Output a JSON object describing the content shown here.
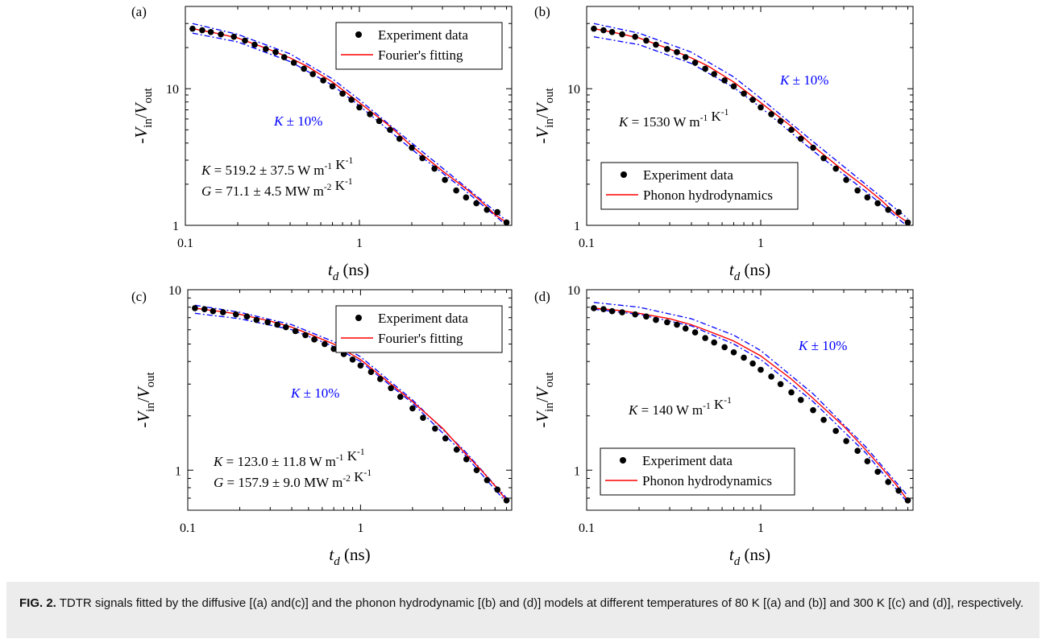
{
  "caption": {
    "label": "FIG. 2.",
    "text": "TDTR signals fitted by the diffusive [(a) and(c)] and the phonon hydrodynamic [(b) and (d)] models at different temperatures of 80 K [(a) and (b)] and 300 K [(c) and (d)], respectively."
  },
  "chart_data": [
    {
      "panel": "(a)",
      "type": "line",
      "log_x": true,
      "log_y": true,
      "xlabel_var": "t",
      "xlabel_sub": "d",
      "xlabel_unit": " (ns)",
      "ylabel": "-Vin/Vout",
      "xlim": [
        0.1,
        7.5
      ],
      "ylim": [
        1,
        40
      ],
      "x_ticks": [
        "0.1",
        "1"
      ],
      "y_ticks": [
        "1",
        "10"
      ],
      "legend": [
        "Experiment data",
        "Fourier's fitting"
      ],
      "legend_position": "top-right",
      "band_label": "K ± 10%",
      "annotations": [
        "K = 519.2 ± 37.5 W m-1 K-1",
        "G = 71.1 ± 4.5 MW m-2 K-1"
      ],
      "fit_color": "#ff0000",
      "band_color": "#0000ff",
      "experiment": {
        "x": [
          0.11,
          0.125,
          0.14,
          0.16,
          0.19,
          0.22,
          0.25,
          0.29,
          0.33,
          0.37,
          0.42,
          0.48,
          0.54,
          0.62,
          0.7,
          0.8,
          0.9,
          1.0,
          1.15,
          1.3,
          1.5,
          1.7,
          2.0,
          2.3,
          2.7,
          3.1,
          3.6,
          4.1,
          4.7,
          5.4,
          6.2,
          7.0
        ],
        "y": [
          27.5,
          26.8,
          26.0,
          25.0,
          24.0,
          22.5,
          21.0,
          19.5,
          18.5,
          17.0,
          15.5,
          14.0,
          12.8,
          11.5,
          10.4,
          9.2,
          8.3,
          7.3,
          6.5,
          5.8,
          5.0,
          4.3,
          3.7,
          3.1,
          2.6,
          2.15,
          1.8,
          1.6,
          1.45,
          1.3,
          1.25,
          1.05
        ]
      },
      "fit": {
        "x": [
          0.11,
          0.15,
          0.2,
          0.3,
          0.4,
          0.5,
          0.7,
          1.0,
          1.5,
          2.0,
          3.0,
          4.0,
          5.0,
          6.0,
          7.0
        ],
        "y": [
          27.5,
          25.5,
          23.5,
          19.5,
          16.8,
          14.6,
          11.2,
          7.9,
          5.3,
          3.8,
          2.5,
          1.9,
          1.5,
          1.2,
          1.05
        ]
      },
      "band_upper": {
        "x": [
          0.11,
          0.2,
          0.4,
          0.7,
          1.0,
          2.0,
          4.0,
          7.0
        ],
        "y": [
          30,
          25,
          18,
          11.8,
          8.3,
          4.0,
          1.95,
          1.08
        ]
      },
      "band_lower": {
        "x": [
          0.11,
          0.2,
          0.4,
          0.7,
          1.0,
          2.0,
          4.0,
          7.0
        ],
        "y": [
          25.5,
          22,
          15.8,
          10.6,
          7.5,
          3.6,
          1.82,
          1.0
        ]
      }
    },
    {
      "panel": "(b)",
      "type": "line",
      "log_x": true,
      "log_y": true,
      "xlabel_var": "t",
      "xlabel_sub": "d",
      "xlabel_unit": " (ns)",
      "ylabel": "-Vin/Vout",
      "xlim": [
        0.1,
        7.5
      ],
      "ylim": [
        1,
        40
      ],
      "x_ticks": [
        "0.1",
        "1"
      ],
      "y_ticks": [
        "1",
        "10"
      ],
      "legend": [
        "Experiment data",
        "Phonon hydrodynamics"
      ],
      "legend_position": "bottom-left",
      "band_label": "K ± 10%",
      "annotations": [
        "K = 1530 W m-1 K-1"
      ],
      "fit_color": "#ff0000",
      "band_color": "#0000ff",
      "experiment": {
        "x": [
          0.11,
          0.125,
          0.14,
          0.16,
          0.19,
          0.22,
          0.25,
          0.29,
          0.33,
          0.37,
          0.42,
          0.48,
          0.54,
          0.62,
          0.7,
          0.8,
          0.9,
          1.0,
          1.15,
          1.3,
          1.5,
          1.7,
          2.0,
          2.3,
          2.7,
          3.1,
          3.6,
          4.1,
          4.7,
          5.4,
          6.2,
          7.0
        ],
        "y": [
          27.5,
          26.8,
          26.0,
          25.0,
          24.0,
          22.5,
          21.0,
          19.5,
          18.5,
          17.0,
          15.5,
          14.0,
          12.8,
          11.5,
          10.4,
          9.2,
          8.3,
          7.3,
          6.5,
          5.8,
          5.0,
          4.3,
          3.7,
          3.1,
          2.6,
          2.15,
          1.8,
          1.6,
          1.45,
          1.3,
          1.25,
          1.05
        ]
      },
      "fit": {
        "x": [
          0.11,
          0.15,
          0.2,
          0.3,
          0.4,
          0.5,
          0.7,
          1.0,
          1.5,
          2.0,
          3.0,
          4.0,
          5.0,
          6.0,
          7.0
        ],
        "y": [
          27.5,
          25.5,
          23.5,
          19.5,
          16.8,
          14.6,
          11.2,
          7.9,
          5.3,
          3.8,
          2.5,
          1.9,
          1.5,
          1.2,
          1.05
        ]
      },
      "band_upper": {
        "x": [
          0.11,
          0.2,
          0.4,
          0.7,
          1.0,
          2.0,
          4.0,
          7.0
        ],
        "y": [
          30,
          25.5,
          18.5,
          12.2,
          8.5,
          4.1,
          2.0,
          1.12
        ]
      },
      "band_lower": {
        "x": [
          0.11,
          0.2,
          0.4,
          0.7,
          1.0,
          2.0,
          4.0,
          7.0
        ],
        "y": [
          24,
          21,
          15.3,
          10.2,
          7.3,
          3.5,
          1.78,
          0.98
        ]
      }
    },
    {
      "panel": "(c)",
      "type": "line",
      "log_x": true,
      "log_y": true,
      "xlabel_var": "t",
      "xlabel_sub": "d",
      "xlabel_unit": " (ns)",
      "ylabel": "-Vin/Vout",
      "xlim": [
        0.1,
        7.5
      ],
      "ylim": [
        0.6,
        10
      ],
      "x_ticks": [
        "0.1",
        "1"
      ],
      "y_ticks": [
        "1",
        "10"
      ],
      "legend": [
        "Experiment data",
        "Fourier's fitting"
      ],
      "legend_position": "top-right",
      "band_label": "K ± 10%",
      "annotations": [
        "K = 123.0 ± 11.8 W m-1 K-1",
        "G = 157.9 ± 9.0 MW m-2 K-1"
      ],
      "fit_color": "#ff0000",
      "band_color": "#0000ff",
      "experiment": {
        "x": [
          0.11,
          0.125,
          0.14,
          0.16,
          0.19,
          0.22,
          0.25,
          0.29,
          0.33,
          0.37,
          0.42,
          0.48,
          0.54,
          0.62,
          0.7,
          0.8,
          0.9,
          1.0,
          1.15,
          1.3,
          1.5,
          1.7,
          2.0,
          2.3,
          2.7,
          3.1,
          3.6,
          4.1,
          4.7,
          5.4,
          6.2,
          7.0
        ],
        "y": [
          7.9,
          7.8,
          7.6,
          7.5,
          7.3,
          7.1,
          6.8,
          6.6,
          6.4,
          6.2,
          5.9,
          5.6,
          5.3,
          5.0,
          4.7,
          4.4,
          4.1,
          3.8,
          3.5,
          3.2,
          2.85,
          2.55,
          2.2,
          1.95,
          1.7,
          1.5,
          1.3,
          1.15,
          1.0,
          0.88,
          0.78,
          0.68
        ]
      },
      "fit": {
        "x": [
          0.11,
          0.15,
          0.2,
          0.3,
          0.4,
          0.5,
          0.7,
          1.0,
          1.5,
          2.0,
          3.0,
          4.0,
          5.0,
          6.0,
          7.0
        ],
        "y": [
          7.9,
          7.6,
          7.3,
          6.7,
          6.2,
          5.7,
          5.0,
          4.1,
          3.0,
          2.4,
          1.7,
          1.25,
          1.0,
          0.82,
          0.68
        ]
      },
      "band_upper": {
        "x": [
          0.11,
          0.2,
          0.4,
          0.7,
          1.0,
          2.0,
          4.0,
          7.0
        ],
        "y": [
          8.2,
          7.5,
          6.4,
          5.15,
          4.25,
          2.45,
          1.28,
          0.7
        ]
      },
      "band_lower": {
        "x": [
          0.11,
          0.2,
          0.4,
          0.7,
          1.0,
          2.0,
          4.0,
          7.0
        ],
        "y": [
          7.4,
          6.9,
          6.0,
          4.85,
          4.0,
          2.35,
          1.22,
          0.66
        ]
      }
    },
    {
      "panel": "(d)",
      "type": "line",
      "log_x": true,
      "log_y": true,
      "xlabel_var": "t",
      "xlabel_sub": "d",
      "xlabel_unit": " (ns)",
      "ylabel": "-Vin/Vout",
      "xlim": [
        0.1,
        7.5
      ],
      "ylim": [
        0.6,
        10
      ],
      "x_ticks": [
        "0.1",
        "1"
      ],
      "y_ticks": [
        "1",
        "10"
      ],
      "legend": [
        "Experiment data",
        "Phonon hydrodynamics"
      ],
      "legend_position": "bottom-left",
      "band_label": "K ± 10%",
      "annotations": [
        "K = 140 W m-1 K-1"
      ],
      "fit_color": "#ff0000",
      "band_color": "#0000ff",
      "experiment": {
        "x": [
          0.11,
          0.125,
          0.14,
          0.16,
          0.19,
          0.22,
          0.25,
          0.29,
          0.33,
          0.37,
          0.42,
          0.48,
          0.54,
          0.62,
          0.7,
          0.8,
          0.9,
          1.0,
          1.15,
          1.3,
          1.5,
          1.7,
          2.0,
          2.3,
          2.7,
          3.1,
          3.6,
          4.1,
          4.7,
          5.4,
          6.2,
          7.0
        ],
        "y": [
          7.9,
          7.8,
          7.6,
          7.5,
          7.3,
          7.1,
          6.8,
          6.6,
          6.4,
          6.1,
          5.8,
          5.4,
          5.1,
          4.8,
          4.5,
          4.2,
          3.9,
          3.6,
          3.3,
          3.0,
          2.7,
          2.45,
          2.15,
          1.9,
          1.65,
          1.45,
          1.28,
          1.12,
          0.98,
          0.86,
          0.77,
          0.68
        ]
      },
      "fit": {
        "x": [
          0.11,
          0.15,
          0.2,
          0.3,
          0.4,
          0.5,
          0.7,
          1.0,
          1.5,
          2.0,
          3.0,
          4.0,
          5.0,
          6.0,
          7.0
        ],
        "y": [
          7.9,
          7.7,
          7.4,
          6.9,
          6.4,
          5.9,
          5.2,
          4.3,
          3.2,
          2.5,
          1.75,
          1.3,
          1.02,
          0.83,
          0.68
        ]
      },
      "band_upper": {
        "x": [
          0.11,
          0.2,
          0.4,
          0.7,
          1.0,
          2.0,
          4.0,
          7.0
        ],
        "y": [
          8.5,
          8.0,
          6.9,
          5.6,
          4.6,
          2.65,
          1.35,
          0.72
        ]
      },
      "band_lower": {
        "x": [
          0.11,
          0.2,
          0.4,
          0.7,
          1.0,
          2.0,
          4.0,
          7.0
        ],
        "y": [
          7.8,
          7.3,
          6.3,
          5.0,
          4.1,
          2.4,
          1.25,
          0.66
        ]
      }
    }
  ]
}
